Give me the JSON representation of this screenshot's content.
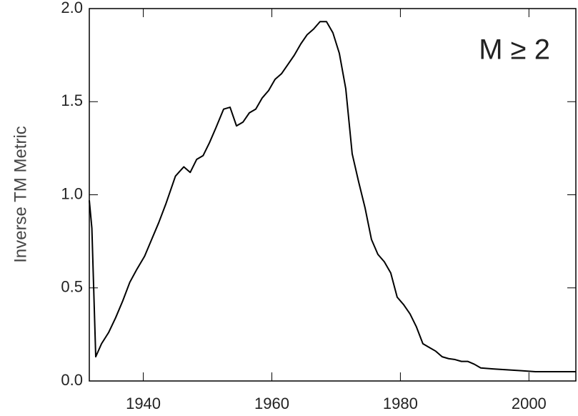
{
  "chart_data": {
    "type": "line",
    "ylabel": "Inverse TM Metric",
    "annotation": "M ≥ 2",
    "color": "#000000",
    "xlim": [
      1931.6,
      2007.3
    ],
    "ylim": [
      0,
      2.0
    ],
    "xticks": [
      1940,
      1960,
      1980,
      2000
    ],
    "yticks": [
      {
        "value": 0,
        "label": "0.0"
      },
      0.5,
      {
        "value": 1,
        "label": "1.0"
      },
      1.5,
      {
        "value": 2,
        "label": "2.0"
      }
    ],
    "x": [
      1931.6,
      1932.0,
      1932.6,
      1933.5,
      1934.6,
      1935.7,
      1936.8,
      1937.9,
      1939.0,
      1940.2,
      1941.3,
      1942.4,
      1943.5,
      1945.0,
      1946.3,
      1947.3,
      1948.3,
      1949.3,
      1950.3,
      1951.3,
      1952.5,
      1953.5,
      1954.5,
      1955.5,
      1956.5,
      1957.5,
      1958.5,
      1959.5,
      1960.5,
      1961.5,
      1962.5,
      1963.5,
      1964.5,
      1965.5,
      1966.5,
      1967.5,
      1968.5,
      1969.5,
      1970.5,
      1971.5,
      1972.5,
      1973.5,
      1974.5,
      1975.5,
      1976.5,
      1977.5,
      1978.5,
      1979.5,
      1980.5,
      1981.5,
      1982.5,
      1983.5,
      1984.5,
      1985.5,
      1986.5,
      1987.5,
      1988.5,
      1989.5,
      1990.5,
      1991.5,
      1992.5,
      1994.4,
      1996.6,
      1998.8,
      2001.0,
      2007.3
    ],
    "values": [
      0.97,
      0.82,
      0.13,
      0.2,
      0.26,
      0.34,
      0.43,
      0.53,
      0.6,
      0.67,
      0.76,
      0.85,
      0.95,
      1.1,
      1.15,
      1.12,
      1.19,
      1.21,
      1.28,
      1.36,
      1.46,
      1.47,
      1.37,
      1.39,
      1.44,
      1.46,
      1.52,
      1.56,
      1.62,
      1.65,
      1.7,
      1.75,
      1.81,
      1.86,
      1.89,
      1.93,
      1.93,
      1.87,
      1.76,
      1.57,
      1.22,
      1.07,
      0.93,
      0.76,
      0.68,
      0.64,
      0.58,
      0.45,
      0.41,
      0.36,
      0.29,
      0.2,
      0.18,
      0.16,
      0.13,
      0.12,
      0.115,
      0.105,
      0.105,
      0.09,
      0.07,
      0.065,
      0.06,
      0.055,
      0.05,
      0.05
    ]
  }
}
